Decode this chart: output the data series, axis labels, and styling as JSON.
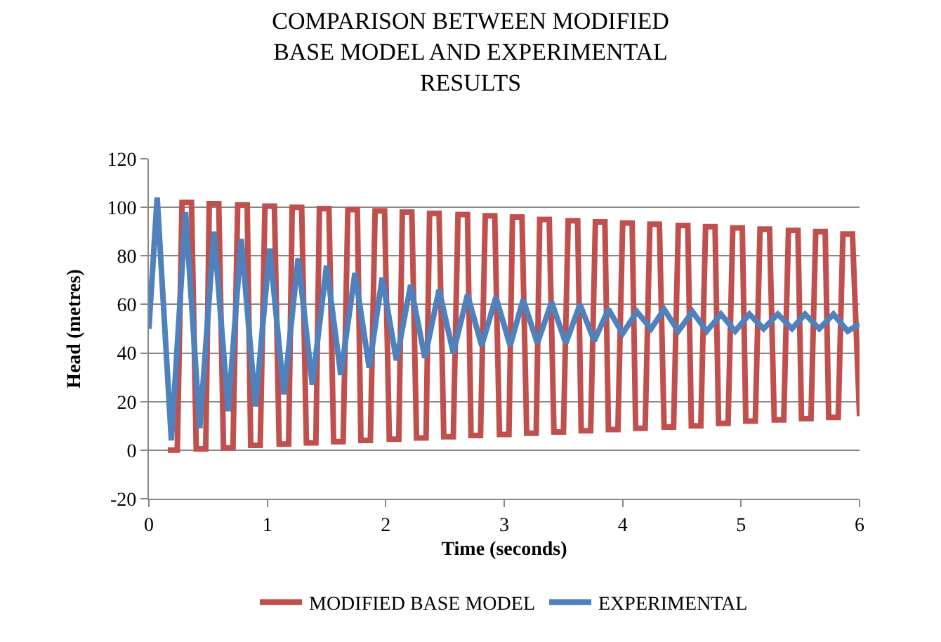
{
  "chart_data": {
    "type": "line",
    "title": "COMPARISON BETWEEN MODIFIED\nBASE MODEL AND EXPERIMENTAL\nRESULTS",
    "xlabel": "Time (seconds)",
    "ylabel": "Head (metres)",
    "xlim": [
      0,
      6
    ],
    "xticks": [
      0,
      1,
      2,
      3,
      4,
      5,
      6
    ],
    "ylim": [
      -20,
      120
    ],
    "yticks": [
      -20,
      0,
      20,
      40,
      60,
      80,
      100,
      120
    ],
    "grid": "y",
    "legend": "bottom",
    "marker": "none",
    "line_style": "solid",
    "series": [
      {
        "name": "MODIFIED BASE MODEL",
        "color": "#c0504d",
        "x": [
          0.16,
          0.24,
          0.28,
          0.36,
          0.4,
          0.48,
          0.51,
          0.59,
          0.63,
          0.71,
          0.75,
          0.83,
          0.86,
          0.94,
          0.98,
          1.06,
          1.1,
          1.18,
          1.21,
          1.29,
          1.33,
          1.41,
          1.44,
          1.52,
          1.56,
          1.64,
          1.68,
          1.76,
          1.79,
          1.87,
          1.91,
          1.99,
          2.03,
          2.11,
          2.14,
          2.22,
          2.26,
          2.34,
          2.37,
          2.45,
          2.49,
          2.57,
          2.61,
          2.69,
          2.72,
          2.8,
          2.84,
          2.92,
          2.96,
          3.04,
          3.07,
          3.15,
          3.19,
          3.27,
          3.3,
          3.38,
          3.42,
          3.5,
          3.54,
          3.62,
          3.65,
          3.73,
          3.77,
          3.85,
          3.88,
          3.96,
          4.0,
          4.08,
          4.11,
          4.19,
          4.23,
          4.31,
          4.35,
          4.43,
          4.47,
          4.55,
          4.58,
          4.66,
          4.7,
          4.78,
          4.81,
          4.89,
          4.93,
          5.01,
          5.04,
          5.12,
          5.16,
          5.24,
          5.28,
          5.36,
          5.4,
          5.48,
          5.51,
          5.59,
          5.63,
          5.71,
          5.74,
          5.82,
          5.86,
          5.94,
          6.0
        ],
        "values": [
          0,
          0,
          102,
          102,
          0.5,
          0.5,
          101.5,
          101.5,
          1,
          1,
          101,
          101,
          2,
          2,
          100.5,
          100.5,
          2.5,
          2.5,
          100,
          100,
          3,
          3,
          99.5,
          99.5,
          3.5,
          3.5,
          99,
          99,
          4,
          4,
          98.5,
          98.5,
          4.5,
          4.5,
          98,
          98,
          5,
          5,
          97.5,
          97.5,
          5.5,
          5.5,
          97,
          97,
          6,
          6,
          96.5,
          96.5,
          6.5,
          6.5,
          96,
          96,
          7,
          7,
          95,
          95,
          7.5,
          7.5,
          94.5,
          94.5,
          8,
          8,
          94,
          94,
          8.5,
          8.5,
          93.5,
          93.5,
          9,
          9,
          93,
          93,
          9.5,
          9.5,
          92.5,
          92.5,
          10,
          10,
          92,
          92,
          11,
          11,
          91.5,
          91.5,
          12,
          12,
          91,
          91,
          12.5,
          12.5,
          90.5,
          90.5,
          13,
          13,
          90,
          90,
          13.5,
          13.5,
          89,
          89,
          14
        ]
      },
      {
        "name": "EXPERIMENTAL",
        "color": "#4f81bd",
        "x": [
          0,
          0.07,
          0.19,
          0.31,
          0.43,
          0.55,
          0.67,
          0.78,
          0.9,
          1.02,
          1.14,
          1.26,
          1.38,
          1.5,
          1.62,
          1.74,
          1.86,
          1.97,
          2.09,
          2.21,
          2.33,
          2.45,
          2.57,
          2.69,
          2.81,
          2.93,
          3.05,
          3.16,
          3.28,
          3.4,
          3.52,
          3.64,
          3.76,
          3.88,
          4.0,
          4.12,
          4.24,
          4.35,
          4.47,
          4.59,
          4.71,
          4.83,
          4.95,
          5.07,
          5.19,
          5.31,
          5.43,
          5.54,
          5.66,
          5.78,
          5.9,
          6.0
        ],
        "values": [
          50,
          104,
          4,
          98,
          9,
          90,
          16,
          87,
          18,
          83,
          23,
          79,
          27,
          76,
          31,
          73,
          34,
          71,
          37,
          68,
          38,
          66,
          40,
          64,
          43,
          63,
          43,
          62,
          44,
          61,
          44,
          60,
          45,
          58,
          48,
          57,
          50,
          58,
          49,
          57,
          49,
          56,
          49,
          56,
          50,
          56,
          50,
          56,
          50,
          56,
          49,
          52
        ]
      }
    ]
  }
}
